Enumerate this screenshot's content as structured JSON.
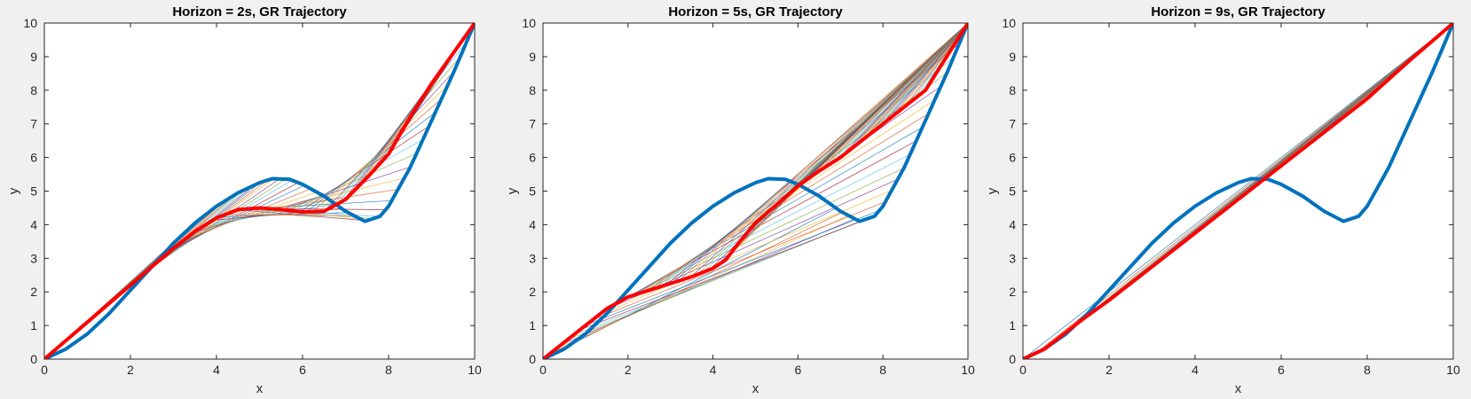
{
  "chart_data": [
    {
      "type": "line",
      "title": "Horizon = 2s, GR Trajectory",
      "xlabel": "x",
      "ylabel": "y",
      "xlim": [
        0,
        10
      ],
      "ylim": [
        0,
        10
      ],
      "x_ticks": [
        0,
        2,
        4,
        6,
        8,
        10
      ],
      "y_ticks": [
        0,
        1,
        2,
        3,
        4,
        5,
        6,
        7,
        8,
        9,
        10
      ],
      "grid": false,
      "legend": "none",
      "reference_path": {
        "color": "#0072BD",
        "points": [
          [
            0,
            0
          ],
          [
            0.5,
            0.3
          ],
          [
            1,
            0.75
          ],
          [
            1.5,
            1.35
          ],
          [
            2,
            2.05
          ],
          [
            2.5,
            2.75
          ],
          [
            3,
            3.45
          ],
          [
            3.5,
            4.05
          ],
          [
            4,
            4.55
          ],
          [
            4.5,
            4.95
          ],
          [
            5,
            5.25
          ],
          [
            5.3,
            5.37
          ],
          [
            5.7,
            5.35
          ],
          [
            6,
            5.2
          ],
          [
            6.5,
            4.85
          ],
          [
            7,
            4.4
          ],
          [
            7.45,
            4.1
          ],
          [
            7.8,
            4.25
          ],
          [
            8,
            4.55
          ],
          [
            8.5,
            5.7
          ],
          [
            9,
            7.1
          ],
          [
            9.5,
            8.5
          ],
          [
            10,
            10
          ]
        ]
      },
      "gr_trajectory": {
        "color": "#FF0000",
        "points": [
          [
            0,
            0
          ],
          [
            0.5,
            0.55
          ],
          [
            1,
            1.1
          ],
          [
            1.5,
            1.65
          ],
          [
            2,
            2.2
          ],
          [
            2.5,
            2.75
          ],
          [
            3,
            3.3
          ],
          [
            3.5,
            3.8
          ],
          [
            4,
            4.2
          ],
          [
            4.5,
            4.45
          ],
          [
            5,
            4.5
          ],
          [
            5.5,
            4.45
          ],
          [
            6,
            4.38
          ],
          [
            6.5,
            4.4
          ],
          [
            7,
            4.75
          ],
          [
            7.5,
            5.4
          ],
          [
            8,
            6.1
          ],
          [
            8.5,
            7.2
          ],
          [
            9,
            8.2
          ],
          [
            9.5,
            9.1
          ],
          [
            10,
            10
          ]
        ]
      },
      "predicted_horizons": {
        "count": 70,
        "color_cycle": [
          "#0072BD",
          "#D95319",
          "#EDB120",
          "#7E2F8E",
          "#77AC30",
          "#4DBEEE",
          "#A2142F"
        ]
      }
    },
    {
      "type": "line",
      "title": "Horizon = 5s, GR Trajectory",
      "xlabel": "x",
      "ylabel": "y",
      "xlim": [
        0,
        10
      ],
      "ylim": [
        0,
        10
      ],
      "x_ticks": [
        0,
        2,
        4,
        6,
        8,
        10
      ],
      "y_ticks": [
        0,
        1,
        2,
        3,
        4,
        5,
        6,
        7,
        8,
        9,
        10
      ],
      "grid": false,
      "legend": "none",
      "reference_path": {
        "color": "#0072BD",
        "points": [
          [
            0,
            0
          ],
          [
            0.5,
            0.3
          ],
          [
            1,
            0.75
          ],
          [
            1.5,
            1.35
          ],
          [
            2,
            2.05
          ],
          [
            2.5,
            2.75
          ],
          [
            3,
            3.45
          ],
          [
            3.5,
            4.05
          ],
          [
            4,
            4.55
          ],
          [
            4.5,
            4.95
          ],
          [
            5,
            5.25
          ],
          [
            5.3,
            5.37
          ],
          [
            5.7,
            5.35
          ],
          [
            6,
            5.2
          ],
          [
            6.5,
            4.85
          ],
          [
            7,
            4.4
          ],
          [
            7.45,
            4.1
          ],
          [
            7.8,
            4.25
          ],
          [
            8,
            4.55
          ],
          [
            8.5,
            5.7
          ],
          [
            9,
            7.1
          ],
          [
            9.5,
            8.5
          ],
          [
            10,
            10
          ]
        ]
      },
      "gr_trajectory": {
        "color": "#FF0000",
        "points": [
          [
            0,
            0
          ],
          [
            0.5,
            0.5
          ],
          [
            1,
            1
          ],
          [
            1.5,
            1.5
          ],
          [
            2,
            1.85
          ],
          [
            2.5,
            2.05
          ],
          [
            3,
            2.25
          ],
          [
            3.5,
            2.45
          ],
          [
            4,
            2.7
          ],
          [
            4.3,
            2.95
          ],
          [
            4.6,
            3.45
          ],
          [
            5,
            4.05
          ],
          [
            5.5,
            4.6
          ],
          [
            6,
            5.15
          ],
          [
            6.5,
            5.6
          ],
          [
            7,
            6
          ],
          [
            8,
            7
          ],
          [
            9,
            8
          ],
          [
            10,
            10
          ]
        ]
      },
      "predicted_horizons": {
        "count": 70,
        "color_cycle": [
          "#0072BD",
          "#D95319",
          "#EDB120",
          "#7E2F8E",
          "#77AC30",
          "#4DBEEE",
          "#A2142F"
        ]
      }
    },
    {
      "type": "line",
      "title": "Horizon = 9s, GR Trajectory",
      "xlabel": "x",
      "ylabel": "y",
      "xlim": [
        0,
        10
      ],
      "ylim": [
        0,
        10
      ],
      "x_ticks": [
        0,
        2,
        4,
        6,
        8,
        10
      ],
      "y_ticks": [
        0,
        1,
        2,
        3,
        4,
        5,
        6,
        7,
        8,
        9,
        10
      ],
      "grid": false,
      "legend": "none",
      "reference_path": {
        "color": "#0072BD",
        "points": [
          [
            0,
            0
          ],
          [
            0.5,
            0.3
          ],
          [
            1,
            0.75
          ],
          [
            1.5,
            1.35
          ],
          [
            2,
            2.05
          ],
          [
            2.5,
            2.75
          ],
          [
            3,
            3.45
          ],
          [
            3.5,
            4.05
          ],
          [
            4,
            4.55
          ],
          [
            4.5,
            4.95
          ],
          [
            5,
            5.25
          ],
          [
            5.3,
            5.37
          ],
          [
            5.7,
            5.35
          ],
          [
            6,
            5.2
          ],
          [
            6.5,
            4.85
          ],
          [
            7,
            4.4
          ],
          [
            7.45,
            4.1
          ],
          [
            7.8,
            4.25
          ],
          [
            8,
            4.55
          ],
          [
            8.5,
            5.7
          ],
          [
            9,
            7.1
          ],
          [
            9.5,
            8.5
          ],
          [
            10,
            10
          ]
        ]
      },
      "gr_trajectory": {
        "color": "#FF0000",
        "points": [
          [
            0,
            0
          ],
          [
            0.5,
            0.3
          ],
          [
            1,
            0.8
          ],
          [
            1.3,
            1.1
          ],
          [
            2,
            1.75
          ],
          [
            3,
            2.75
          ],
          [
            4,
            3.75
          ],
          [
            5,
            4.75
          ],
          [
            6,
            5.75
          ],
          [
            7,
            6.75
          ],
          [
            8,
            7.75
          ],
          [
            9,
            8.9
          ],
          [
            10,
            10
          ]
        ]
      },
      "predicted_horizons": {
        "count": 35,
        "color_cycle": [
          "#0072BD",
          "#D95319",
          "#EDB120",
          "#7E2F8E",
          "#77AC30",
          "#4DBEEE",
          "#A2142F"
        ]
      }
    }
  ]
}
